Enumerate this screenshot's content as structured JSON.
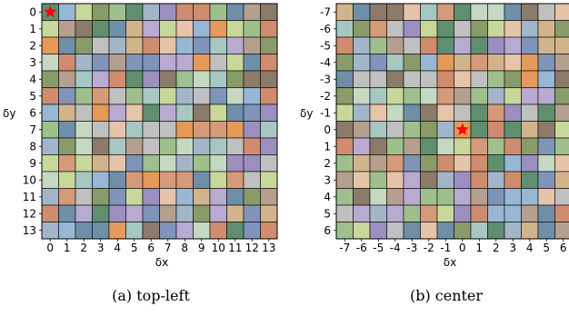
{
  "palette": [
    "#8c7b6b",
    "#b8aad1",
    "#6f8fa8",
    "#9fbf8c",
    "#d59a7a",
    "#c5d9c2",
    "#b59f8f",
    "#98b7d4",
    "#e6c4a9",
    "#8a9b6a",
    "#cf8c6f",
    "#a7c8c2",
    "#7f94b8",
    "#c8d89a",
    "#e59a5a",
    "#5f8f6f",
    "#d2b48c",
    "#9c8fbf",
    "#c0c0c0",
    "#a3b6c9"
  ],
  "chart_data": [
    {
      "type": "heatmap",
      "caption": "(a) top-left",
      "xlabel": "δx",
      "ylabel": "δy",
      "x_ticks": [
        "0",
        "1",
        "2",
        "3",
        "4",
        "5",
        "6",
        "7",
        "8",
        "9",
        "10",
        "11",
        "12",
        "13"
      ],
      "y_ticks": [
        "0",
        "1",
        "2",
        "3",
        "4",
        "5",
        "6",
        "7",
        "8",
        "9",
        "10",
        "11",
        "12",
        "13"
      ],
      "marker": {
        "x": 0,
        "y": 0,
        "symbol": "star",
        "color": "#ff0000"
      },
      "grid": true
    },
    {
      "type": "heatmap",
      "caption": "(b) center",
      "xlabel": "δx",
      "ylabel": "δy",
      "x_ticks": [
        "-7",
        "-6",
        "-5",
        "-4",
        "-3",
        "-2",
        "-1",
        "0",
        "1",
        "2",
        "3",
        "4",
        "5",
        "6"
      ],
      "y_ticks": [
        "-7",
        "-6",
        "-5",
        "-4",
        "-3",
        "-2",
        "-1",
        "0",
        "1",
        "2",
        "3",
        "4",
        "5",
        "6"
      ],
      "marker": {
        "x": 0,
        "y": 0,
        "symbol": "star",
        "color": "#ff0000"
      },
      "grid": true
    }
  ]
}
